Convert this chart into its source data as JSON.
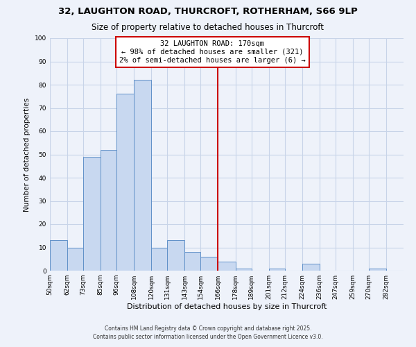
{
  "title_line1": "32, LAUGHTON ROAD, THURCROFT, ROTHERHAM, S66 9LP",
  "title_line2": "Size of property relative to detached houses in Thurcroft",
  "xlabel": "Distribution of detached houses by size in Thurcroft",
  "ylabel": "Number of detached properties",
  "bins": [
    "50sqm",
    "62sqm",
    "73sqm",
    "85sqm",
    "96sqm",
    "108sqm",
    "120sqm",
    "131sqm",
    "143sqm",
    "154sqm",
    "166sqm",
    "178sqm",
    "189sqm",
    "201sqm",
    "212sqm",
    "224sqm",
    "236sqm",
    "247sqm",
    "259sqm",
    "270sqm",
    "282sqm"
  ],
  "bin_edges": [
    50,
    62,
    73,
    85,
    96,
    108,
    120,
    131,
    143,
    154,
    166,
    178,
    189,
    201,
    212,
    224,
    236,
    247,
    259,
    270,
    282,
    294
  ],
  "counts": [
    13,
    10,
    49,
    52,
    76,
    82,
    10,
    13,
    8,
    6,
    4,
    1,
    0,
    1,
    0,
    3,
    0,
    0,
    0,
    1,
    0
  ],
  "bar_facecolor": "#c8d8f0",
  "bar_edgecolor": "#6090c8",
  "grid_color": "#c8d4e8",
  "background_color": "#eef2fa",
  "vline_x": 166,
  "vline_color": "#cc0000",
  "annotation_title": "32 LAUGHTON ROAD: 170sqm",
  "annotation_line1": "← 98% of detached houses are smaller (321)",
  "annotation_line2": "2% of semi-detached houses are larger (6) →",
  "annotation_box_edgecolor": "#cc0000",
  "ylim": [
    0,
    100
  ],
  "yticks": [
    0,
    10,
    20,
    30,
    40,
    50,
    60,
    70,
    80,
    90,
    100
  ],
  "footer_line1": "Contains HM Land Registry data © Crown copyright and database right 2025.",
  "footer_line2": "Contains public sector information licensed under the Open Government Licence v3.0.",
  "title_fontsize": 9.5,
  "subtitle_fontsize": 8.5,
  "xlabel_fontsize": 8,
  "ylabel_fontsize": 7.5,
  "tick_fontsize": 6.5,
  "annotation_fontsize": 7.5,
  "footer_fontsize": 5.5
}
